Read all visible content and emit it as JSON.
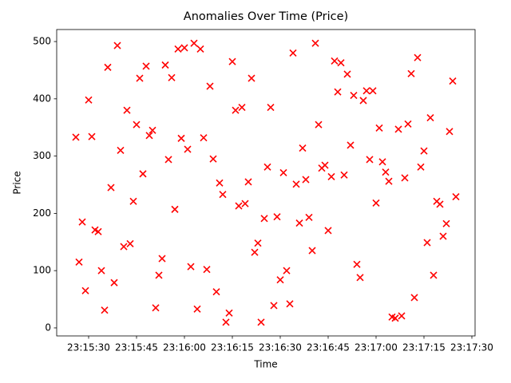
{
  "chart_data": {
    "type": "scatter",
    "title": "Anomalies Over Time (Price)",
    "x_label": "Time",
    "y_label": "Price",
    "color": "#ff0000",
    "marker": "x",
    "x": [
      "23:15:26",
      "23:15:27",
      "23:15:28",
      "23:15:29",
      "23:15:30",
      "23:15:31",
      "23:15:32",
      "23:15:33",
      "23:15:34",
      "23:15:35",
      "23:15:36",
      "23:15:37",
      "23:15:38",
      "23:15:39",
      "23:15:40",
      "23:15:41",
      "23:15:42",
      "23:15:43",
      "23:15:44",
      "23:15:45",
      "23:15:46",
      "23:15:47",
      "23:15:48",
      "23:15:49",
      "23:15:50",
      "23:15:51",
      "23:15:52",
      "23:15:53",
      "23:15:54",
      "23:15:55",
      "23:15:56",
      "23:15:57",
      "23:15:58",
      "23:15:59",
      "23:16:00",
      "23:16:01",
      "23:16:02",
      "23:16:03",
      "23:16:04",
      "23:16:05",
      "23:16:06",
      "23:16:07",
      "23:16:08",
      "23:16:09",
      "23:16:10",
      "23:16:11",
      "23:16:12",
      "23:16:13",
      "23:16:14",
      "23:16:15",
      "23:16:16",
      "23:16:17",
      "23:16:18",
      "23:16:19",
      "23:16:20",
      "23:16:21",
      "23:16:22",
      "23:16:23",
      "23:16:24",
      "23:16:25",
      "23:16:26",
      "23:16:27",
      "23:16:28",
      "23:16:29",
      "23:16:30",
      "23:16:31",
      "23:16:32",
      "23:16:33",
      "23:16:34",
      "23:16:35",
      "23:16:36",
      "23:16:37",
      "23:16:38",
      "23:16:39",
      "23:16:40",
      "23:16:41",
      "23:16:42",
      "23:16:43",
      "23:16:44",
      "23:16:45",
      "23:16:46",
      "23:16:47",
      "23:16:48",
      "23:16:49",
      "23:16:50",
      "23:16:51",
      "23:16:52",
      "23:16:53",
      "23:16:54",
      "23:16:55",
      "23:16:56",
      "23:16:57",
      "23:16:58",
      "23:16:59",
      "23:17:00",
      "23:17:01",
      "23:17:02",
      "23:17:03",
      "23:17:04",
      "23:17:05",
      "23:17:06",
      "23:17:07",
      "23:17:08",
      "23:17:09",
      "23:17:10",
      "23:17:11",
      "23:17:12",
      "23:17:13",
      "23:17:14",
      "23:17:15",
      "23:17:16",
      "23:17:17",
      "23:17:18",
      "23:17:19",
      "23:17:20",
      "23:17:21",
      "23:17:22",
      "23:17:23",
      "23:17:24",
      "23:17:25"
    ],
    "values": [
      333,
      115,
      185,
      65,
      398,
      334,
      171,
      168,
      100,
      31,
      455,
      245,
      79,
      493,
      310,
      142,
      380,
      147,
      221,
      355,
      436,
      269,
      457,
      336,
      345,
      35,
      92,
      121,
      459,
      294,
      437,
      207,
      487,
      331,
      489,
      312,
      107,
      497,
      33,
      487,
      332,
      102,
      422,
      295,
      63,
      253,
      233,
      10,
      26,
      465,
      380,
      213,
      385,
      217,
      255,
      436,
      132,
      148,
      10,
      191,
      281,
      385,
      39,
      194,
      84,
      271,
      100,
      42,
      480,
      251,
      183,
      314,
      259,
      193,
      135,
      497,
      355,
      279,
      284,
      170,
      264,
      466,
      412,
      463,
      267,
      443,
      319,
      406,
      111,
      88,
      397,
      414,
      294,
      414,
      218,
      349,
      290,
      272,
      256,
      19,
      17,
      347,
      21,
      262,
      356,
      444,
      53,
      472,
      281,
      309,
      149,
      367,
      92,
      221,
      216,
      160,
      182,
      343,
      431,
      229
    ],
    "xlim": [
      "23:15:20",
      "23:17:31"
    ],
    "xticks": [
      "23:15:30",
      "23:15:45",
      "23:16:00",
      "23:16:15",
      "23:16:30",
      "23:16:45",
      "23:17:00",
      "23:17:15",
      "23:17:30"
    ],
    "ylim": [
      -14,
      521
    ],
    "yticks": [
      0,
      100,
      200,
      300,
      400,
      500
    ],
    "grid": false
  }
}
